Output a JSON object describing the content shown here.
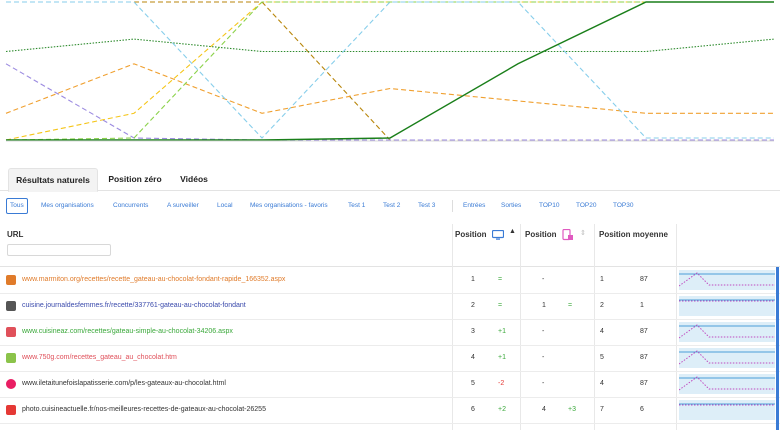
{
  "chart_data": {
    "type": "line",
    "note_series": [
      {
        "color": "#b8860b",
        "style": "dashed",
        "values": [
          1,
          1,
          1,
          99,
          99,
          99,
          99,
          99
        ]
      },
      {
        "color": "#9b8ae0",
        "style": "dashed",
        "values": [
          6,
          12,
          99,
          99,
          99,
          99,
          99,
          99
        ]
      },
      {
        "color": "#f0a030",
        "style": "dashed",
        "values": [
          10,
          6,
          10,
          8,
          9,
          10,
          10,
          8
        ]
      },
      {
        "color": "#f5c518",
        "style": "dashed",
        "values": [
          99,
          10,
          1,
          1,
          1,
          1,
          1,
          1
        ]
      },
      {
        "color": "#8bd24a",
        "style": "dashed",
        "values": [
          99,
          12,
          1,
          1,
          1,
          1,
          1,
          1
        ]
      },
      {
        "color": "#2e8b2e",
        "style": "dotted",
        "values": [
          5,
          4,
          5,
          5,
          5,
          5,
          4,
          1
        ]
      },
      {
        "color": "#87ceeb",
        "style": "dashed",
        "values": [
          1,
          1,
          12,
          1,
          1,
          12,
          12,
          12
        ]
      },
      {
        "color": "#1a7f1a",
        "style": "solid",
        "values": [
          99,
          99,
          99,
          12,
          6,
          1,
          1,
          12
        ]
      }
    ]
  },
  "tabs": [
    {
      "label": "Résultats naturels",
      "active": true
    },
    {
      "label": "Position zéro",
      "active": false
    },
    {
      "label": "Vidéos",
      "active": false
    }
  ],
  "filters_left": [
    "Tous",
    "Mes organisations",
    "Concurrents",
    "A surveiller",
    "Local",
    "Mes organisations - favoris",
    "Test 1",
    "Test 2",
    "Test 3"
  ],
  "filters_right": [
    "Entrées",
    "Sorties",
    "TOP10",
    "TOP20",
    "TOP30"
  ],
  "columns": {
    "url": "URL",
    "position1": "Position",
    "position2": "Position",
    "avg": "Position moyenne"
  },
  "icons": {
    "monitor": "monitor-icon",
    "mobile": "mobile-icon",
    "sort": "sort-icon"
  },
  "rows": [
    {
      "url": "www.marmiton.org/recettes/recette_gateau-au-chocolat-fondant-rapide_166352.aspx",
      "url_color": "#e07b2a",
      "favicon": "#e07b2a",
      "pos": "1",
      "delta": "=",
      "delta_color": "#3aa83a",
      "mpos": "-",
      "mdelta": "",
      "mdelta_color": "#3aa83a",
      "avg1": "1",
      "avg2": "87"
    },
    {
      "url": "cuisine.journaldesfemmes.fr/recette/337761-gateau-au-chocolat-fondant",
      "url_color": "#3949ab",
      "favicon": "#555555",
      "pos": "2",
      "delta": "=",
      "delta_color": "#3aa83a",
      "mpos": "1",
      "mdelta": "=",
      "mdelta_color": "#3aa83a",
      "avg1": "2",
      "avg2": "1"
    },
    {
      "url": "www.cuisineaz.com/recettes/gateau-simple-au-chocolat-34206.aspx",
      "url_color": "#3aa83a",
      "favicon": "#e0505a",
      "pos": "3",
      "delta": "+1",
      "delta_color": "#3aa83a",
      "mpos": "-",
      "mdelta": "",
      "mdelta_color": "#3aa83a",
      "avg1": "4",
      "avg2": "87"
    },
    {
      "url": "www.750g.com/recettes_gateau_au_chocolat.htm",
      "url_color": "#e0505a",
      "favicon": "#8bc34a",
      "pos": "4",
      "delta": "+1",
      "delta_color": "#3aa83a",
      "mpos": "-",
      "mdelta": "",
      "mdelta_color": "#3aa83a",
      "avg1": "5",
      "avg2": "87"
    },
    {
      "url": "www.iletaitunefoislapatisserie.com/p/les-gateaux-au-chocolat.html",
      "url_color": "#333333",
      "favicon": "#e91e63",
      "pos": "5",
      "delta": "-2",
      "delta_color": "#e53935",
      "mpos": "-",
      "mdelta": "",
      "mdelta_color": "#3aa83a",
      "avg1": "4",
      "avg2": "87"
    },
    {
      "url": "photo.cuisineactuelle.fr/nos-meilleures-recettes-de-gateaux-au-chocolat-26255",
      "url_color": "#333333",
      "favicon": "#e53935",
      "pos": "6",
      "delta": "+2",
      "delta_color": "#3aa83a",
      "mpos": "4",
      "mdelta": "+3",
      "mdelta_color": "#3aa83a",
      "avg1": "7",
      "avg2": "6"
    }
  ]
}
